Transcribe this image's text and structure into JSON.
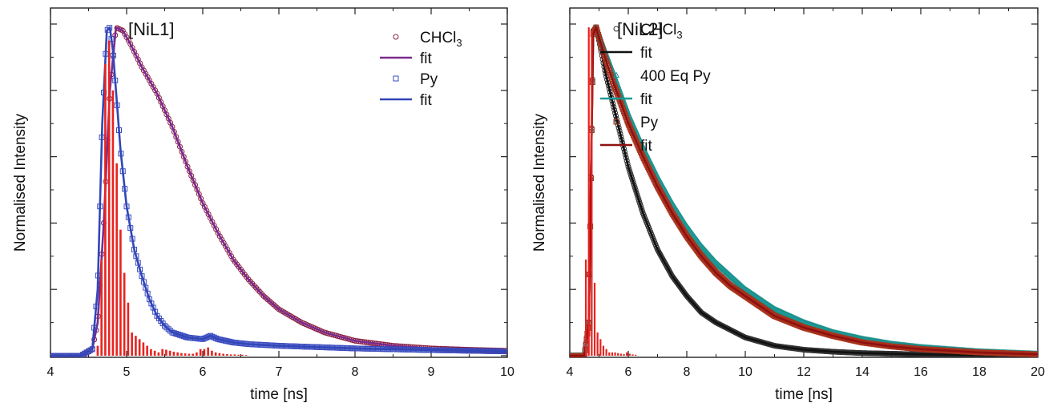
{
  "chart_data": [
    {
      "type": "line",
      "title": "[NiL1]",
      "xlabel": "time [ns]",
      "ylabel": "Normalised Intensity",
      "xlim": [
        4,
        10
      ],
      "ylim": [
        0,
        1.0
      ],
      "x_ticks": [
        "4",
        "5",
        "6",
        "7",
        "8",
        "9",
        "10"
      ],
      "y_ticks_labeled": false,
      "grid": false,
      "legend_position": "top-right",
      "legend": [
        {
          "label": "CHCl",
          "sub": "3",
          "marker": "circle",
          "color": "#8a2040"
        },
        {
          "label": "fit",
          "marker": "line",
          "color": "#7b2a8c"
        },
        {
          "label": "Py",
          "marker": "square",
          "color": "#3a4bbf"
        },
        {
          "label": "fit",
          "marker": "line",
          "color": "#3146b8"
        }
      ],
      "series": [
        {
          "kind": "fit",
          "color": "#7b2a8c",
          "x": [
            4.0,
            4.4,
            4.55,
            4.62,
            4.7,
            4.78,
            4.86,
            4.95,
            5.05,
            5.2,
            5.4,
            5.6,
            5.8,
            6.0,
            6.2,
            6.4,
            6.6,
            6.8,
            7.0,
            7.3,
            7.6,
            8.0,
            8.5,
            9.0,
            9.5,
            10.0
          ],
          "y": [
            0.0,
            0.0,
            0.02,
            0.1,
            0.4,
            0.8,
            0.99,
            0.98,
            0.94,
            0.87,
            0.79,
            0.69,
            0.57,
            0.46,
            0.37,
            0.29,
            0.23,
            0.18,
            0.14,
            0.1,
            0.07,
            0.045,
            0.03,
            0.022,
            0.018,
            0.015
          ]
        },
        {
          "kind": "fit",
          "color": "#3146b8",
          "x": [
            4.0,
            4.4,
            4.55,
            4.62,
            4.68,
            4.74,
            4.78,
            4.82,
            4.86,
            4.92,
            5.0,
            5.1,
            5.2,
            5.3,
            5.4,
            5.5,
            5.6,
            5.8,
            6.0,
            6.1,
            6.2,
            6.4,
            6.6,
            7.0,
            8.0,
            9.0,
            10.0
          ],
          "y": [
            0.0,
            0.0,
            0.02,
            0.2,
            0.7,
            0.98,
            0.99,
            0.92,
            0.8,
            0.62,
            0.45,
            0.32,
            0.24,
            0.17,
            0.12,
            0.09,
            0.07,
            0.055,
            0.05,
            0.06,
            0.05,
            0.04,
            0.035,
            0.03,
            0.022,
            0.017,
            0.013
          ]
        },
        {
          "kind": "irf",
          "color": "#e8231f",
          "x": [
            4.62,
            4.67,
            4.72,
            4.77,
            4.82,
            4.87,
            4.92,
            4.97,
            5.02,
            5.07,
            5.12,
            5.17,
            5.22,
            5.27,
            5.32,
            5.37,
            5.42,
            5.47,
            5.52,
            5.57,
            5.62,
            5.67,
            5.72,
            5.77,
            5.82,
            5.87,
            5.92,
            5.97,
            6.02,
            6.07,
            6.12,
            6.17,
            6.22,
            6.27,
            6.32,
            6.37,
            6.42,
            6.47,
            6.52,
            6.57
          ],
          "y": [
            0.03,
            0.29,
            0.88,
            0.95,
            0.8,
            0.58,
            0.38,
            0.25,
            0.16,
            0.07,
            0.06,
            0.05,
            0.04,
            0.03,
            0.02,
            0.015,
            0.01,
            0.02,
            0.018,
            0.015,
            0.012,
            0.01,
            0.008,
            0.007,
            0.006,
            0.006,
            0.01,
            0.02,
            0.02,
            0.025,
            0.015,
            0.01,
            0.008,
            0.006,
            0.005,
            0.004,
            0.004,
            0.003,
            0.003,
            0.002
          ]
        }
      ]
    },
    {
      "type": "line",
      "title": "[NiL2]",
      "xlabel": "time [ns]",
      "ylabel": "Normalised Intensity",
      "xlim": [
        4,
        20
      ],
      "ylim": [
        0,
        1.0
      ],
      "x_ticks": [
        "4",
        "6",
        "8",
        "10",
        "12",
        "14",
        "16",
        "18",
        "20"
      ],
      "y_ticks_labeled": false,
      "grid": false,
      "legend_position": "top-right",
      "legend": [
        {
          "label": "CHCl",
          "sub": "3",
          "marker": "circle",
          "color": "#333333"
        },
        {
          "label": "fit",
          "marker": "line",
          "color": "#111111"
        },
        {
          "label": "400 Eq Py",
          "marker": "triangle",
          "color": "#1c8f8c"
        },
        {
          "label": "fit",
          "marker": "line",
          "color": "#1a9a96"
        },
        {
          "label": "Py",
          "marker": "square",
          "color": "#a8321c"
        },
        {
          "label": "fit",
          "marker": "line",
          "color": "#8e1010"
        }
      ],
      "series": [
        {
          "kind": "fit",
          "color": "#111111",
          "x": [
            4.0,
            4.5,
            4.65,
            4.8,
            4.9,
            5.0,
            5.2,
            5.5,
            6.0,
            6.5,
            7.0,
            7.5,
            8.0,
            8.5,
            9.0,
            10.0,
            11.0,
            12.0,
            13.0,
            14.0,
            16.0,
            18.0,
            20.0
          ],
          "y": [
            0.0,
            0.0,
            0.1,
            0.98,
            0.99,
            0.95,
            0.86,
            0.75,
            0.57,
            0.43,
            0.32,
            0.24,
            0.18,
            0.13,
            0.1,
            0.055,
            0.03,
            0.018,
            0.012,
            0.008,
            0.004,
            0.002,
            0.001
          ]
        },
        {
          "kind": "fit",
          "color": "#1a9a96",
          "x": [
            4.0,
            4.5,
            4.65,
            4.8,
            4.9,
            5.0,
            5.2,
            5.5,
            6.0,
            6.5,
            7.0,
            7.5,
            8.0,
            8.5,
            9.0,
            9.5,
            10.0,
            11.0,
            12.0,
            13.0,
            14.0,
            15.0,
            16.0,
            18.0,
            20.0
          ],
          "y": [
            0.0,
            0.0,
            0.1,
            0.97,
            0.99,
            0.97,
            0.92,
            0.85,
            0.73,
            0.63,
            0.54,
            0.46,
            0.39,
            0.33,
            0.28,
            0.24,
            0.2,
            0.14,
            0.1,
            0.07,
            0.05,
            0.035,
            0.025,
            0.012,
            0.005
          ]
        },
        {
          "kind": "fit",
          "color": "#8e1010",
          "x": [
            4.0,
            4.5,
            4.65,
            4.8,
            4.9,
            5.0,
            5.2,
            5.5,
            6.0,
            6.5,
            7.0,
            7.5,
            8.0,
            8.5,
            9.0,
            9.5,
            10.0,
            11.0,
            12.0,
            13.0,
            14.0,
            15.0,
            16.0,
            18.0,
            20.0
          ],
          "y": [
            0.0,
            0.0,
            0.1,
            0.97,
            0.99,
            0.96,
            0.9,
            0.82,
            0.7,
            0.6,
            0.51,
            0.43,
            0.36,
            0.3,
            0.25,
            0.21,
            0.18,
            0.12,
            0.085,
            0.06,
            0.04,
            0.028,
            0.02,
            0.01,
            0.004
          ]
        },
        {
          "kind": "irf",
          "color": "#e8231f",
          "x": [
            4.55,
            4.65,
            4.75,
            4.85,
            4.95,
            5.05,
            5.15,
            5.25,
            5.35,
            5.45,
            5.55,
            5.65,
            5.75,
            5.85,
            5.95,
            6.05,
            6.15,
            6.25
          ],
          "y": [
            0.29,
            0.99,
            0.98,
            0.22,
            0.07,
            0.05,
            0.03,
            0.02,
            0.01,
            0.01,
            0.01,
            0.008,
            0.006,
            0.005,
            0.01,
            0.006,
            0.004,
            0.003
          ]
        }
      ]
    }
  ]
}
